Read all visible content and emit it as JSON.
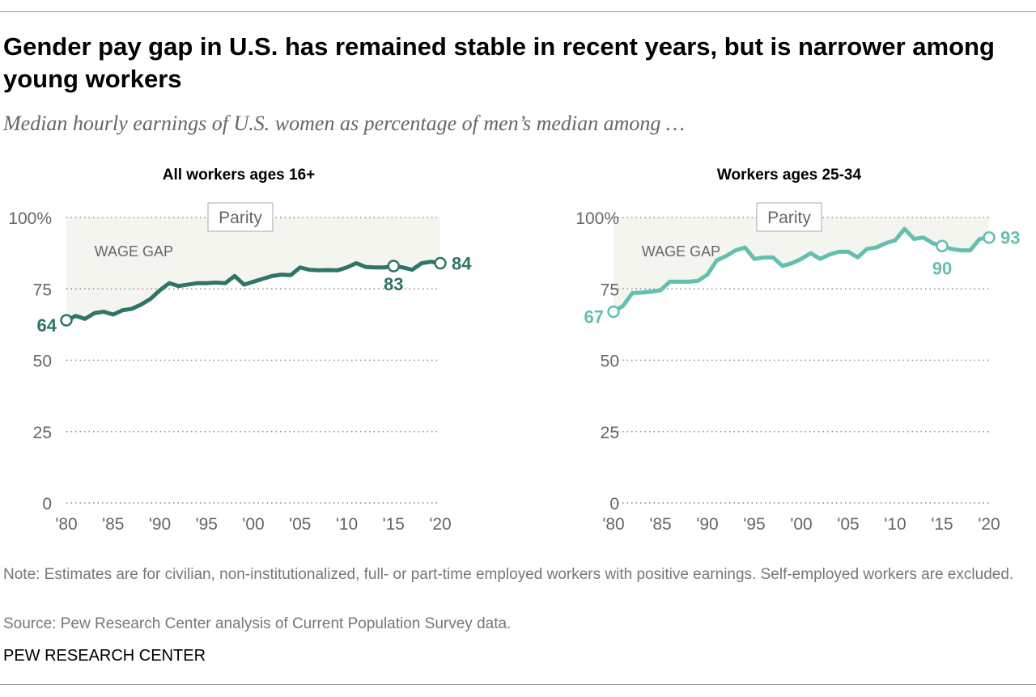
{
  "title": "Gender pay gap in U.S. has remained stable in recent years, but is narrower among young workers",
  "subtitle": "Median hourly earnings of U.S. women as percentage of men’s median among …",
  "note": "Note: Estimates are for civilian, non-institutionalized, full- or part-time employed workers with positive earnings. Self-employed workers are excluded.",
  "source": "Source: Pew Research Center analysis of Current Population Survey data.",
  "brand": "PEW RESEARCH CENTER",
  "chart_data": [
    {
      "type": "line",
      "title": "All workers ages 16+",
      "color": "#2f7565",
      "parity_label": "Parity",
      "gap_label": "WAGE GAP",
      "ylim": [
        0,
        100
      ],
      "yticks": [
        "0",
        "25",
        "50",
        "75",
        "100%"
      ],
      "xticks": [
        "'80",
        "'85",
        "'90",
        "'95",
        "'00",
        "'05",
        "'10",
        "'15",
        "'20"
      ],
      "x": [
        1980,
        1981,
        1982,
        1983,
        1984,
        1985,
        1986,
        1987,
        1988,
        1989,
        1990,
        1991,
        1992,
        1993,
        1994,
        1995,
        1996,
        1997,
        1998,
        1999,
        2000,
        2001,
        2002,
        2003,
        2004,
        2005,
        2006,
        2007,
        2008,
        2009,
        2010,
        2011,
        2012,
        2013,
        2014,
        2015,
        2016,
        2017,
        2018,
        2019,
        2020
      ],
      "values": [
        64,
        65.5,
        64.5,
        66.5,
        67,
        66,
        67.5,
        68,
        69.5,
        71.5,
        74.5,
        77,
        76,
        76.5,
        77,
        77,
        77.2,
        77,
        79.5,
        76.5,
        77.5,
        78.5,
        79.5,
        80,
        79.8,
        82.5,
        81.7,
        81.5,
        81.6,
        81.5,
        82.5,
        84,
        82.7,
        82.5,
        82.5,
        83,
        82.5,
        81.7,
        84,
        84.5,
        84
      ],
      "labels": [
        {
          "year": 1980,
          "text": "64"
        },
        {
          "year": 2015,
          "text": "83"
        },
        {
          "year": 2020,
          "text": "84"
        }
      ]
    },
    {
      "type": "line",
      "title": "Workers ages 25-34",
      "color": "#64bfae",
      "parity_label": "Parity",
      "gap_label": "WAGE GAP",
      "ylim": [
        0,
        100
      ],
      "yticks": [
        "0",
        "25",
        "50",
        "75",
        "100%"
      ],
      "xticks": [
        "'80",
        "'85",
        "'90",
        "'95",
        "'00",
        "'05",
        "'10",
        "'15",
        "'20"
      ],
      "x": [
        1980,
        1981,
        1982,
        1983,
        1984,
        1985,
        1986,
        1987,
        1988,
        1989,
        1990,
        1991,
        1992,
        1993,
        1994,
        1995,
        1996,
        1997,
        1998,
        1999,
        2000,
        2001,
        2002,
        2003,
        2004,
        2005,
        2006,
        2007,
        2008,
        2009,
        2010,
        2011,
        2012,
        2013,
        2014,
        2015,
        2016,
        2017,
        2018,
        2019,
        2020
      ],
      "values": [
        67,
        69,
        73.5,
        73.7,
        74,
        74.5,
        77.5,
        77.5,
        77.5,
        77.8,
        80,
        85,
        86.5,
        88.5,
        89.5,
        85.5,
        86,
        86,
        83,
        84,
        85.5,
        87.5,
        85.5,
        87,
        88,
        88,
        86,
        89,
        89.5,
        91,
        92,
        96,
        92.5,
        93,
        91,
        90,
        89,
        88.5,
        88.5,
        92.5,
        93
      ],
      "labels": [
        {
          "year": 1980,
          "text": "67"
        },
        {
          "year": 2015,
          "text": "90"
        },
        {
          "year": 2020,
          "text": "93"
        }
      ]
    }
  ]
}
